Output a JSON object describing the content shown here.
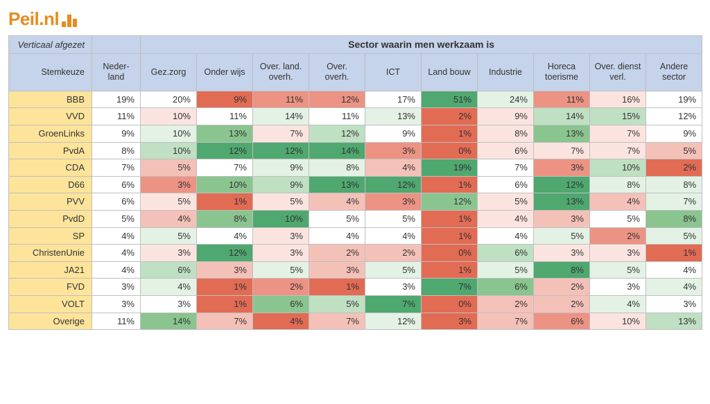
{
  "logo_text": "Peil.nl",
  "corner_label": "Verticaal afgezet",
  "group_header": "Sector waarin men werkzaam is",
  "row_header_label": "Stemkeuze",
  "nederland_label": "Neder-\nland",
  "sector_labels": [
    "Gez.zorg",
    "Onder wijs",
    "Over. land. overh.",
    "Over. overh.",
    "ICT",
    "Land bouw",
    "Industrie",
    "Horeca toerisme",
    "Over. dienst verl.",
    "Andere sector"
  ],
  "colors": {
    "green4": "#4fa86f",
    "green3": "#8ac58f",
    "green2": "#bfe0c3",
    "green1": "#e4f2e5",
    "white": "#ffffff",
    "red1": "#fbe4e0",
    "red2": "#f4c1b8",
    "red3": "#ec9384",
    "red4": "#e26b54"
  },
  "rows": [
    {
      "label": "BBB",
      "nl": "19%",
      "cells": [
        {
          "v": "20%",
          "c": "white"
        },
        {
          "v": "9%",
          "c": "red4"
        },
        {
          "v": "11%",
          "c": "red3"
        },
        {
          "v": "12%",
          "c": "red3"
        },
        {
          "v": "17%",
          "c": "white"
        },
        {
          "v": "51%",
          "c": "green4"
        },
        {
          "v": "24%",
          "c": "green1"
        },
        {
          "v": "11%",
          "c": "red3"
        },
        {
          "v": "16%",
          "c": "red1"
        },
        {
          "v": "19%",
          "c": "white"
        }
      ]
    },
    {
      "label": "VVD",
      "nl": "11%",
      "cells": [
        {
          "v": "10%",
          "c": "red1"
        },
        {
          "v": "11%",
          "c": "white"
        },
        {
          "v": "14%",
          "c": "green1"
        },
        {
          "v": "11%",
          "c": "white"
        },
        {
          "v": "13%",
          "c": "green1"
        },
        {
          "v": "2%",
          "c": "red4"
        },
        {
          "v": "9%",
          "c": "red1"
        },
        {
          "v": "14%",
          "c": "green2"
        },
        {
          "v": "15%",
          "c": "green2"
        },
        {
          "v": "12%",
          "c": "white"
        }
      ]
    },
    {
      "label": "GroenLinks",
      "nl": "9%",
      "cells": [
        {
          "v": "10%",
          "c": "green1"
        },
        {
          "v": "13%",
          "c": "green3"
        },
        {
          "v": "7%",
          "c": "red1"
        },
        {
          "v": "12%",
          "c": "green2"
        },
        {
          "v": "9%",
          "c": "white"
        },
        {
          "v": "1%",
          "c": "red4"
        },
        {
          "v": "8%",
          "c": "red1"
        },
        {
          "v": "13%",
          "c": "green3"
        },
        {
          "v": "7%",
          "c": "red1"
        },
        {
          "v": "9%",
          "c": "white"
        }
      ]
    },
    {
      "label": "PvdA",
      "nl": "8%",
      "cells": [
        {
          "v": "10%",
          "c": "green2"
        },
        {
          "v": "12%",
          "c": "green4"
        },
        {
          "v": "12%",
          "c": "green4"
        },
        {
          "v": "14%",
          "c": "green4"
        },
        {
          "v": "3%",
          "c": "red3"
        },
        {
          "v": "0%",
          "c": "red4"
        },
        {
          "v": "6%",
          "c": "red1"
        },
        {
          "v": "7%",
          "c": "red1"
        },
        {
          "v": "7%",
          "c": "red1"
        },
        {
          "v": "5%",
          "c": "red2"
        }
      ]
    },
    {
      "label": "CDA",
      "nl": "7%",
      "cells": [
        {
          "v": "5%",
          "c": "red2"
        },
        {
          "v": "7%",
          "c": "white"
        },
        {
          "v": "9%",
          "c": "green1"
        },
        {
          "v": "8%",
          "c": "green1"
        },
        {
          "v": "4%",
          "c": "red2"
        },
        {
          "v": "19%",
          "c": "green4"
        },
        {
          "v": "7%",
          "c": "white"
        },
        {
          "v": "3%",
          "c": "red3"
        },
        {
          "v": "10%",
          "c": "green2"
        },
        {
          "v": "2%",
          "c": "red4"
        }
      ]
    },
    {
      "label": "D66",
      "nl": "6%",
      "cells": [
        {
          "v": "3%",
          "c": "red3"
        },
        {
          "v": "10%",
          "c": "green3"
        },
        {
          "v": "9%",
          "c": "green2"
        },
        {
          "v": "13%",
          "c": "green4"
        },
        {
          "v": "12%",
          "c": "green4"
        },
        {
          "v": "1%",
          "c": "red4"
        },
        {
          "v": "6%",
          "c": "white"
        },
        {
          "v": "12%",
          "c": "green4"
        },
        {
          "v": "8%",
          "c": "green1"
        },
        {
          "v": "8%",
          "c": "green1"
        }
      ]
    },
    {
      "label": "PVV",
      "nl": "6%",
      "cells": [
        {
          "v": "5%",
          "c": "red1"
        },
        {
          "v": "1%",
          "c": "red4"
        },
        {
          "v": "5%",
          "c": "red1"
        },
        {
          "v": "4%",
          "c": "red2"
        },
        {
          "v": "3%",
          "c": "red3"
        },
        {
          "v": "12%",
          "c": "green3"
        },
        {
          "v": "5%",
          "c": "red1"
        },
        {
          "v": "13%",
          "c": "green4"
        },
        {
          "v": "4%",
          "c": "red2"
        },
        {
          "v": "7%",
          "c": "green1"
        }
      ]
    },
    {
      "label": "PvdD",
      "nl": "5%",
      "cells": [
        {
          "v": "4%",
          "c": "red2"
        },
        {
          "v": "8%",
          "c": "green3"
        },
        {
          "v": "10%",
          "c": "green4"
        },
        {
          "v": "5%",
          "c": "white"
        },
        {
          "v": "5%",
          "c": "white"
        },
        {
          "v": "1%",
          "c": "red4"
        },
        {
          "v": "4%",
          "c": "red1"
        },
        {
          "v": "3%",
          "c": "red2"
        },
        {
          "v": "5%",
          "c": "white"
        },
        {
          "v": "8%",
          "c": "green3"
        }
      ]
    },
    {
      "label": "SP",
      "nl": "4%",
      "cells": [
        {
          "v": "5%",
          "c": "green1"
        },
        {
          "v": "4%",
          "c": "white"
        },
        {
          "v": "3%",
          "c": "red1"
        },
        {
          "v": "4%",
          "c": "white"
        },
        {
          "v": "4%",
          "c": "white"
        },
        {
          "v": "1%",
          "c": "red4"
        },
        {
          "v": "4%",
          "c": "white"
        },
        {
          "v": "5%",
          "c": "green1"
        },
        {
          "v": "2%",
          "c": "red3"
        },
        {
          "v": "5%",
          "c": "green1"
        }
      ]
    },
    {
      "label": "ChristenUnie",
      "nl": "4%",
      "cells": [
        {
          "v": "3%",
          "c": "red1"
        },
        {
          "v": "12%",
          "c": "green4"
        },
        {
          "v": "3%",
          "c": "red1"
        },
        {
          "v": "2%",
          "c": "red2"
        },
        {
          "v": "2%",
          "c": "red2"
        },
        {
          "v": "0%",
          "c": "red4"
        },
        {
          "v": "6%",
          "c": "green2"
        },
        {
          "v": "3%",
          "c": "red1"
        },
        {
          "v": "3%",
          "c": "red1"
        },
        {
          "v": "1%",
          "c": "red4"
        }
      ]
    },
    {
      "label": "JA21",
      "nl": "4%",
      "cells": [
        {
          "v": "6%",
          "c": "green2"
        },
        {
          "v": "3%",
          "c": "red2"
        },
        {
          "v": "5%",
          "c": "green1"
        },
        {
          "v": "3%",
          "c": "red2"
        },
        {
          "v": "5%",
          "c": "green1"
        },
        {
          "v": "1%",
          "c": "red4"
        },
        {
          "v": "5%",
          "c": "green1"
        },
        {
          "v": "8%",
          "c": "green4"
        },
        {
          "v": "5%",
          "c": "green1"
        },
        {
          "v": "4%",
          "c": "white"
        }
      ]
    },
    {
      "label": "FVD",
      "nl": "3%",
      "cells": [
        {
          "v": "4%",
          "c": "green1"
        },
        {
          "v": "1%",
          "c": "red4"
        },
        {
          "v": "2%",
          "c": "red3"
        },
        {
          "v": "1%",
          "c": "red4"
        },
        {
          "v": "3%",
          "c": "white"
        },
        {
          "v": "7%",
          "c": "green4"
        },
        {
          "v": "6%",
          "c": "green3"
        },
        {
          "v": "2%",
          "c": "red2"
        },
        {
          "v": "3%",
          "c": "white"
        },
        {
          "v": "4%",
          "c": "green1"
        }
      ]
    },
    {
      "label": "VOLT",
      "nl": "3%",
      "cells": [
        {
          "v": "3%",
          "c": "white"
        },
        {
          "v": "1%",
          "c": "red4"
        },
        {
          "v": "6%",
          "c": "green3"
        },
        {
          "v": "5%",
          "c": "green2"
        },
        {
          "v": "7%",
          "c": "green4"
        },
        {
          "v": "0%",
          "c": "red4"
        },
        {
          "v": "2%",
          "c": "red2"
        },
        {
          "v": "2%",
          "c": "red2"
        },
        {
          "v": "4%",
          "c": "green1"
        },
        {
          "v": "3%",
          "c": "white"
        }
      ]
    },
    {
      "label": "Overige",
      "nl": "11%",
      "cells": [
        {
          "v": "14%",
          "c": "green3"
        },
        {
          "v": "7%",
          "c": "red2"
        },
        {
          "v": "4%",
          "c": "red4"
        },
        {
          "v": "7%",
          "c": "red2"
        },
        {
          "v": "12%",
          "c": "green1"
        },
        {
          "v": "3%",
          "c": "red4"
        },
        {
          "v": "7%",
          "c": "red2"
        },
        {
          "v": "6%",
          "c": "red3"
        },
        {
          "v": "10%",
          "c": "red1"
        },
        {
          "v": "13%",
          "c": "green2"
        }
      ]
    }
  ]
}
